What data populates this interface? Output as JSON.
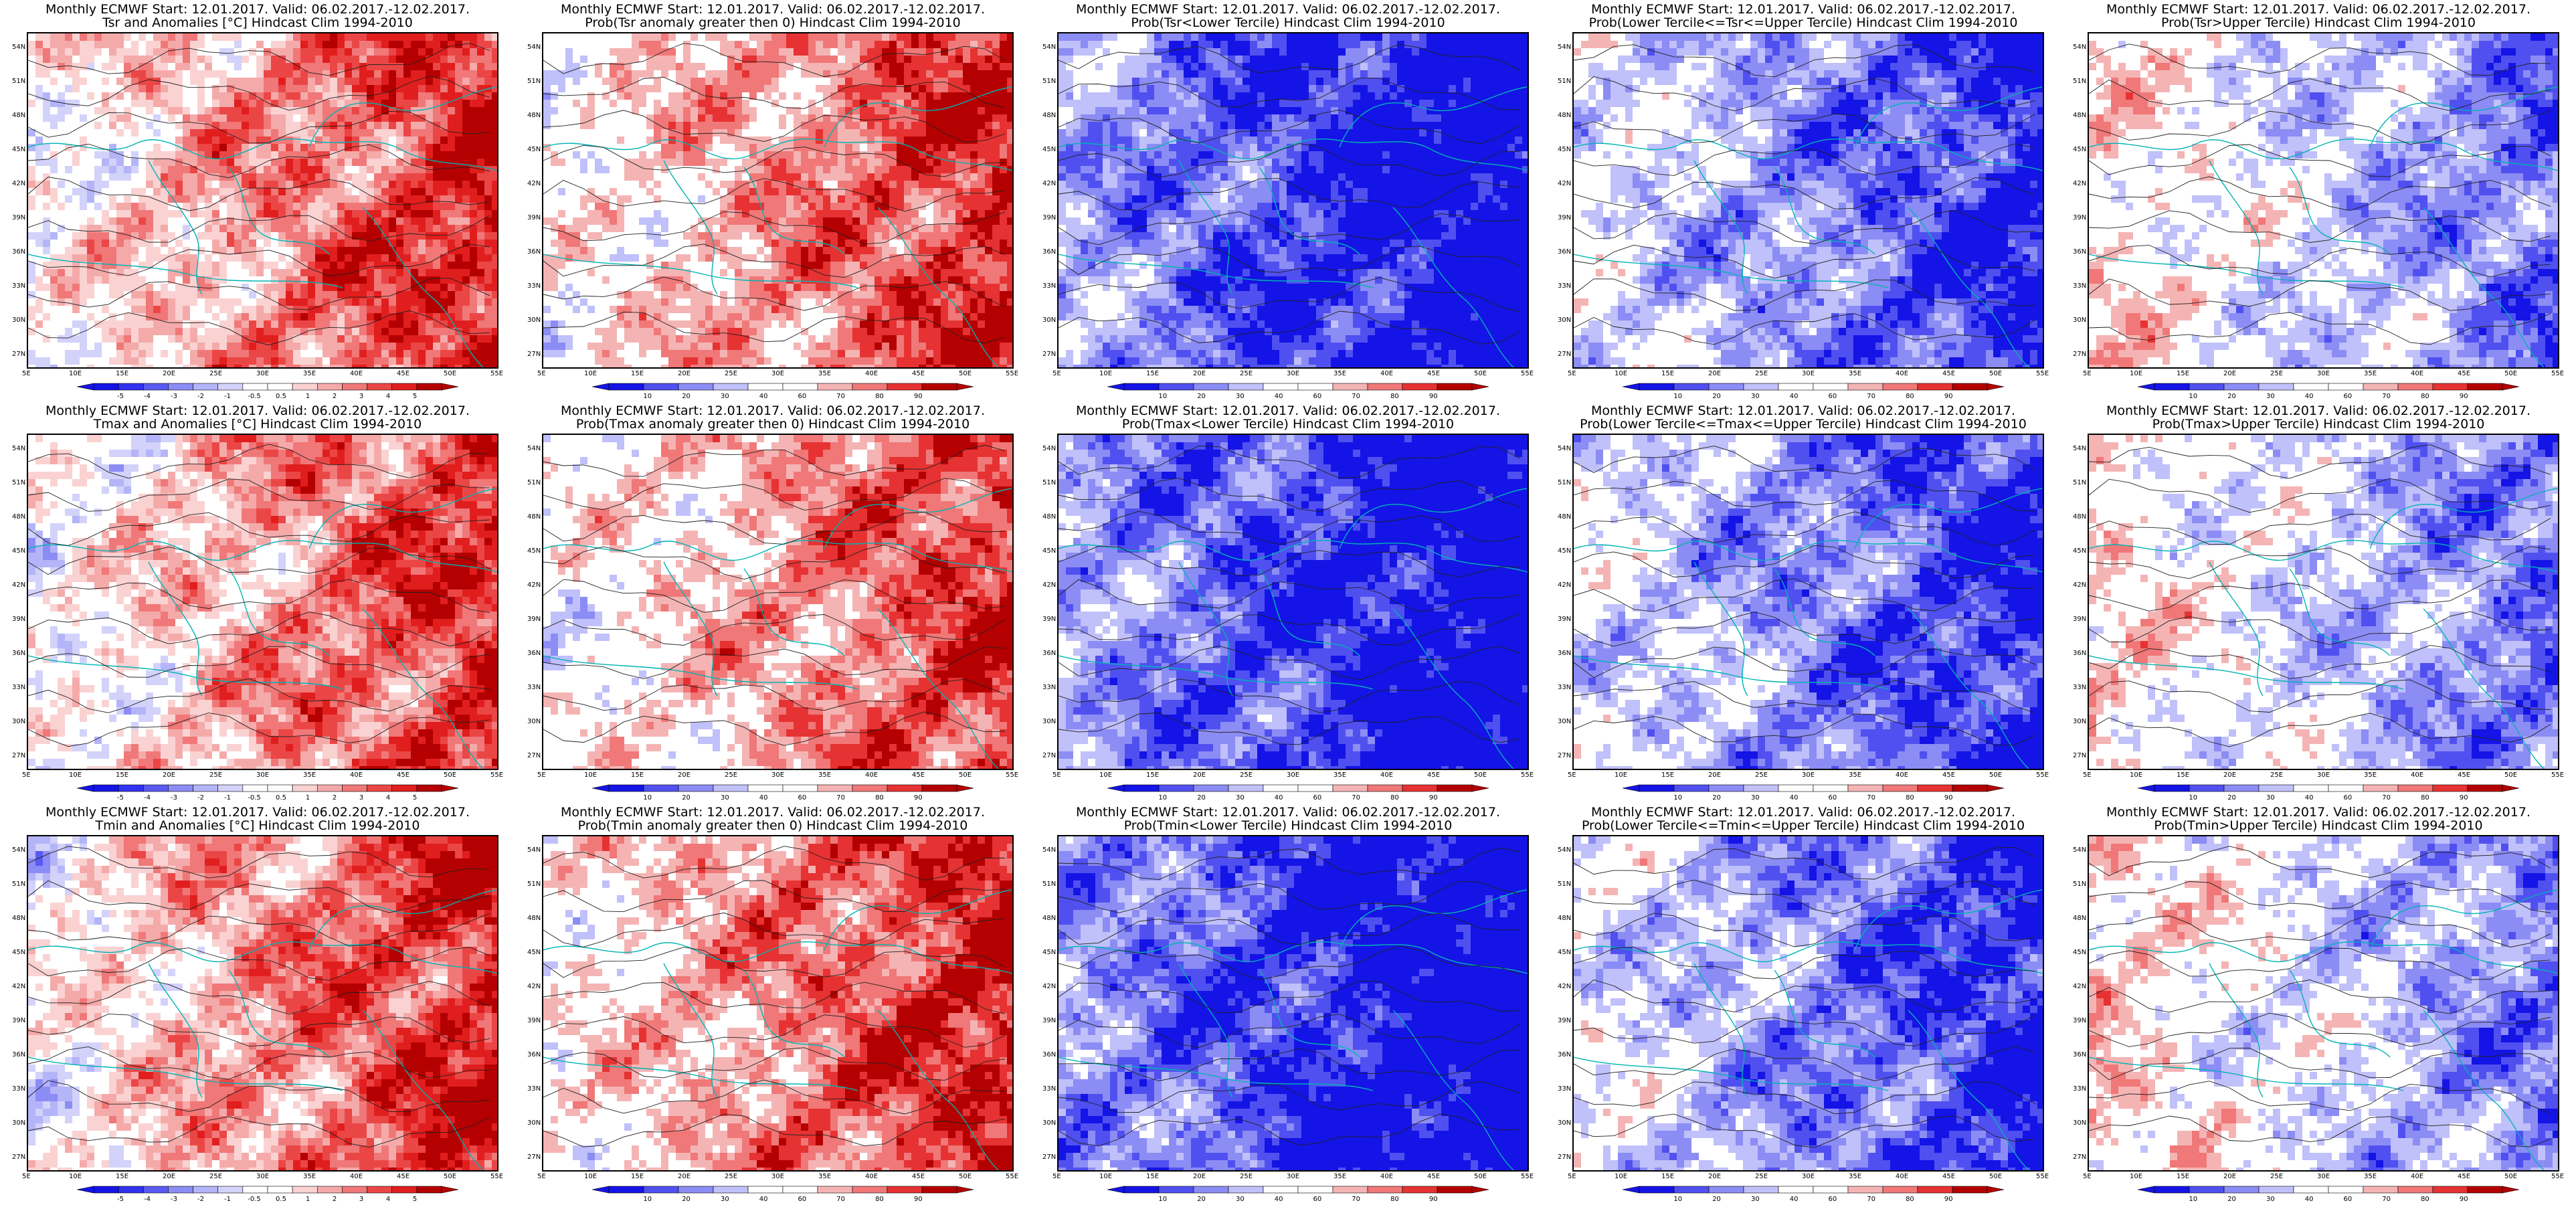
{
  "colors": {
    "anomaly_scale": [
      "#1414e6",
      "#3232f0",
      "#5a5af2",
      "#8c8cf5",
      "#b4b4f8",
      "#d2d2fa",
      "#ffffff",
      "#ffffff",
      "#fad2d2",
      "#f5aaaa",
      "#f07878",
      "#eb4646",
      "#e11e1e",
      "#b40000"
    ],
    "prob_scale": [
      "#1414e6",
      "#5050f0",
      "#8c8cf5",
      "#c0c0fa",
      "#ffffff",
      "#ffffff",
      "#f5b4b4",
      "#f07878",
      "#e63232",
      "#b40000"
    ],
    "contour": "#202020",
    "coastline": "#00b4b4"
  },
  "axes": {
    "lat_ticks": [
      "54N",
      "51N",
      "48N",
      "45N",
      "42N",
      "39N",
      "36N",
      "33N",
      "30N",
      "27N"
    ],
    "lon_ticks": [
      "5E",
      "10E",
      "15E",
      "20E",
      "25E",
      "30E",
      "35E",
      "40E",
      "45E",
      "50E",
      "55E"
    ]
  },
  "colorbars": {
    "anomaly": [
      "-5",
      "-4",
      "-3",
      "-2",
      "-1",
      "-0.5",
      "0.5",
      "1",
      "2",
      "3",
      "4",
      "5"
    ],
    "prob": [
      "10",
      "20",
      "30",
      "40",
      "60",
      "70",
      "80",
      "90"
    ]
  },
  "panels": [
    {
      "title1": "Monthly ECMWF Start: 12.01.2017. Valid: 06.02.2017.-12.02.2017.",
      "title2": "Tsr and Anomalies [°C] Hindcast Clim 1994-2010",
      "type": "anomaly",
      "warm": 0.45
    },
    {
      "title1": "Monthly ECMWF Start: 12.01.2017. Valid: 06.02.2017.-12.02.2017.",
      "title2": "Prob(Tsr anomaly greater then 0) Hindcast Clim 1994-2010",
      "type": "prob",
      "warm": 0.45
    },
    {
      "title1": "Monthly ECMWF Start: 12.01.2017. Valid: 06.02.2017.-12.02.2017.",
      "title2": "Prob(Tsr<Lower Tercile) Hindcast Clim 1994-2010",
      "type": "prob",
      "warm": -0.85
    },
    {
      "title1": "Monthly ECMWF Start: 12.01.2017. Valid: 06.02.2017.-12.02.2017.",
      "title2": "Prob(Lower Tercile<=Tsr<=Upper Tercile) Hindcast Clim 1994-2010",
      "type": "prob",
      "warm": -0.55
    },
    {
      "title1": "Monthly ECMWF Start: 12.01.2017. Valid: 06.02.2017.-12.02.2017.",
      "title2": "Prob(Tsr>Upper Tercile) Hindcast Clim 1994-2010",
      "type": "prob",
      "warm": -0.25
    },
    {
      "title1": "Monthly ECMWF Start: 12.01.2017. Valid: 06.02.2017.-12.02.2017.",
      "title2": "Tmax and Anomalies [°C] Hindcast Clim 1994-2010",
      "type": "anomaly",
      "warm": 0.4
    },
    {
      "title1": "Monthly ECMWF Start: 12.01.2017. Valid: 06.02.2017.-12.02.2017.",
      "title2": "Prob(Tmax anomaly greater then 0) Hindcast Clim 1994-2010",
      "type": "prob",
      "warm": 0.4
    },
    {
      "title1": "Monthly ECMWF Start: 12.01.2017. Valid: 06.02.2017.-12.02.2017.",
      "title2": "Prob(Tmax<Lower Tercile) Hindcast Clim 1994-2010",
      "type": "prob",
      "warm": -0.85
    },
    {
      "title1": "Monthly ECMWF Start: 12.01.2017. Valid: 06.02.2017.-12.02.2017.",
      "title2": "Prob(Lower Tercile<=Tmax<=Upper Tercile) Hindcast Clim 1994-2010",
      "type": "prob",
      "warm": -0.55
    },
    {
      "title1": "Monthly ECMWF Start: 12.01.2017. Valid: 06.02.2017.-12.02.2017.",
      "title2": "Prob(Tmax>Upper Tercile) Hindcast Clim 1994-2010",
      "type": "prob",
      "warm": -0.25
    },
    {
      "title1": "Monthly ECMWF Start: 12.01.2017. Valid: 06.02.2017.-12.02.2017.",
      "title2": "Tmin and Anomalies [°C] Hindcast Clim 1994-2010",
      "type": "anomaly",
      "warm": 0.45
    },
    {
      "title1": "Monthly ECMWF Start: 12.01.2017. Valid: 06.02.2017.-12.02.2017.",
      "title2": "Prob(Tmin anomaly greater then 0) Hindcast Clim 1994-2010",
      "type": "prob",
      "warm": 0.5
    },
    {
      "title1": "Monthly ECMWF Start: 12.01.2017. Valid: 06.02.2017.-12.02.2017.",
      "title2": "Prob(Tmin<Lower Tercile) Hindcast Clim 1994-2010",
      "type": "prob",
      "warm": -0.9
    },
    {
      "title1": "Monthly ECMWF Start: 12.01.2017. Valid: 06.02.2017.-12.02.2017.",
      "title2": "Prob(Lower Tercile<=Tmin<=Upper Tercile) Hindcast Clim 1994-2010",
      "type": "prob",
      "warm": -0.55
    },
    {
      "title1": "Monthly ECMWF Start: 12.01.2017. Valid: 06.02.2017.-12.02.2017.",
      "title2": "Prob(Tmin>Upper Tercile) Hindcast Clim 1994-2010",
      "type": "prob",
      "warm": -0.2
    }
  ]
}
